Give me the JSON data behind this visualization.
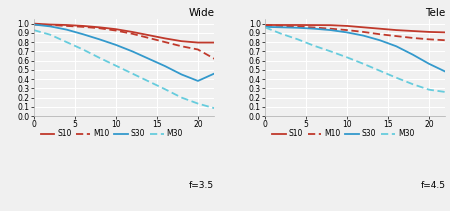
{
  "wide_title": "Wide",
  "tele_title": "Tele",
  "wide_f": "f=3.5",
  "tele_f": "f=4.5",
  "xlim": [
    0,
    22
  ],
  "ylim": [
    0,
    1.05
  ],
  "xticks": [
    0,
    5,
    10,
    15,
    20
  ],
  "yticks": [
    0,
    0.1,
    0.2,
    0.3,
    0.4,
    0.5,
    0.6,
    0.7,
    0.8,
    0.9,
    1.0
  ],
  "color_red": "#c0392b",
  "color_blue": "#3399cc",
  "color_cyan": "#66ccdd",
  "wide_S10": [
    [
      0,
      1.0
    ],
    [
      2,
      0.99
    ],
    [
      4,
      0.985
    ],
    [
      6,
      0.975
    ],
    [
      8,
      0.96
    ],
    [
      10,
      0.94
    ],
    [
      12,
      0.91
    ],
    [
      14,
      0.875
    ],
    [
      16,
      0.84
    ],
    [
      18,
      0.81
    ],
    [
      20,
      0.795
    ],
    [
      22,
      0.795
    ]
  ],
  "wide_M10": [
    [
      0,
      0.99
    ],
    [
      2,
      0.985
    ],
    [
      4,
      0.975
    ],
    [
      6,
      0.965
    ],
    [
      8,
      0.95
    ],
    [
      10,
      0.925
    ],
    [
      12,
      0.89
    ],
    [
      14,
      0.845
    ],
    [
      16,
      0.8
    ],
    [
      18,
      0.755
    ],
    [
      20,
      0.72
    ],
    [
      22,
      0.62
    ]
  ],
  "wide_S30": [
    [
      0,
      0.99
    ],
    [
      2,
      0.97
    ],
    [
      4,
      0.935
    ],
    [
      6,
      0.885
    ],
    [
      8,
      0.83
    ],
    [
      10,
      0.77
    ],
    [
      12,
      0.7
    ],
    [
      14,
      0.62
    ],
    [
      16,
      0.54
    ],
    [
      18,
      0.45
    ],
    [
      20,
      0.38
    ],
    [
      22,
      0.46
    ]
  ],
  "wide_M30": [
    [
      0,
      0.93
    ],
    [
      2,
      0.88
    ],
    [
      4,
      0.8
    ],
    [
      6,
      0.72
    ],
    [
      8,
      0.63
    ],
    [
      10,
      0.545
    ],
    [
      12,
      0.46
    ],
    [
      14,
      0.375
    ],
    [
      16,
      0.29
    ],
    [
      18,
      0.2
    ],
    [
      20,
      0.135
    ],
    [
      22,
      0.085
    ]
  ],
  "tele_S10": [
    [
      0,
      0.985
    ],
    [
      2,
      0.985
    ],
    [
      4,
      0.985
    ],
    [
      6,
      0.984
    ],
    [
      8,
      0.983
    ],
    [
      10,
      0.975
    ],
    [
      12,
      0.96
    ],
    [
      14,
      0.945
    ],
    [
      16,
      0.93
    ],
    [
      18,
      0.92
    ],
    [
      20,
      0.91
    ],
    [
      22,
      0.905
    ]
  ],
  "tele_M10": [
    [
      0,
      0.985
    ],
    [
      2,
      0.975
    ],
    [
      4,
      0.968
    ],
    [
      6,
      0.958
    ],
    [
      8,
      0.945
    ],
    [
      10,
      0.93
    ],
    [
      12,
      0.91
    ],
    [
      14,
      0.885
    ],
    [
      16,
      0.865
    ],
    [
      18,
      0.845
    ],
    [
      20,
      0.83
    ],
    [
      22,
      0.82
    ]
  ],
  "tele_S30": [
    [
      0,
      0.965
    ],
    [
      2,
      0.96
    ],
    [
      4,
      0.955
    ],
    [
      6,
      0.945
    ],
    [
      8,
      0.93
    ],
    [
      10,
      0.905
    ],
    [
      12,
      0.87
    ],
    [
      14,
      0.82
    ],
    [
      16,
      0.755
    ],
    [
      18,
      0.665
    ],
    [
      20,
      0.565
    ],
    [
      22,
      0.48
    ]
  ],
  "tele_M30": [
    [
      0,
      0.96
    ],
    [
      2,
      0.89
    ],
    [
      4,
      0.83
    ],
    [
      6,
      0.76
    ],
    [
      8,
      0.7
    ],
    [
      10,
      0.635
    ],
    [
      12,
      0.565
    ],
    [
      14,
      0.49
    ],
    [
      16,
      0.415
    ],
    [
      18,
      0.345
    ],
    [
      20,
      0.285
    ],
    [
      22,
      0.26
    ]
  ],
  "legend_labels": [
    "S10",
    "M10",
    "S30",
    "M30"
  ],
  "bg_color": "#f0f0f0"
}
